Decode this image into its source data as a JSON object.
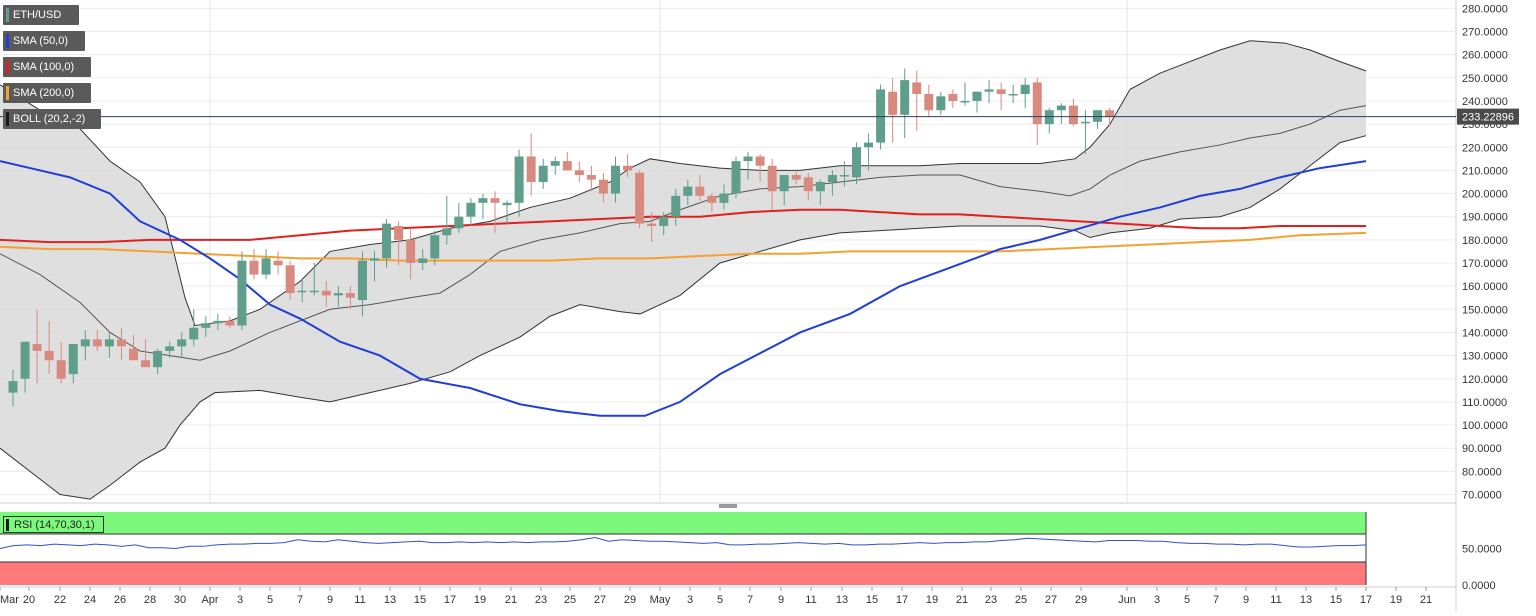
{
  "legend": {
    "symbol": "ETH/USD",
    "sma50": "SMA (50,0)",
    "sma100": "SMA (100,0)",
    "sma200": "SMA (200,0)",
    "boll": "BOLL (20,2,-2)",
    "rsi": "RSI (14,70,30,1)"
  },
  "colors": {
    "up": "#5f9e8a",
    "down": "#d98a7f",
    "sma50": "#1f3fd6",
    "sma100": "#e02020",
    "sma200": "#f5a030",
    "boll_fill": "#d9d9d9",
    "rsi_line": "#3050d0",
    "rsi_over": "#7cf87c",
    "rsi_under": "#ff7b7b",
    "price_line": "#2c3e66"
  },
  "chart_data": {
    "type": "candlestick",
    "current_price": "233.22896",
    "y_ticks": [
      "280.0000",
      "270.0000",
      "260.0000",
      "250.0000",
      "240.0000",
      "230.0000",
      "220.0000",
      "210.0000",
      "200.0000",
      "190.0000",
      "180.0000",
      "170.0000",
      "160.0000",
      "150.0000",
      "140.0000",
      "130.0000",
      "120.0000",
      "110.0000",
      "100.0000",
      "90.0000",
      "80.0000",
      "70.0000"
    ],
    "rsi_ticks": [
      "50.0000",
      "0.0000"
    ],
    "x_ticks": [
      "Mar",
      "20",
      "22",
      "24",
      "26",
      "28",
      "30",
      "Apr",
      "3",
      "5",
      "7",
      "9",
      "11",
      "13",
      "15",
      "17",
      "19",
      "21",
      "23",
      "25",
      "27",
      "29",
      "May",
      "3",
      "5",
      "7",
      "9",
      "11",
      "13",
      "15",
      "17",
      "19",
      "21",
      "23",
      "25",
      "27",
      "29",
      "Jun",
      "3",
      "5",
      "7",
      "9",
      "11",
      "13",
      "15",
      "17",
      "19",
      "21"
    ],
    "ylim": [
      68,
      283
    ],
    "candles": [
      [
        114,
        124,
        108,
        119
      ],
      [
        120,
        136,
        114,
        136
      ],
      [
        135,
        150,
        118,
        132
      ],
      [
        132,
        145,
        122,
        128
      ],
      [
        128,
        136,
        118,
        120
      ],
      [
        122,
        135,
        118,
        135
      ],
      [
        134,
        141,
        128,
        137
      ],
      [
        137,
        141,
        132,
        134
      ],
      [
        134,
        140,
        129,
        137
      ],
      [
        137,
        142,
        128,
        134
      ],
      [
        133,
        139,
        130,
        128
      ],
      [
        128,
        137,
        126,
        125
      ],
      [
        125,
        133,
        122,
        132
      ],
      [
        132,
        136,
        129,
        134
      ],
      [
        134,
        140,
        129,
        137
      ],
      [
        137,
        150,
        134,
        142
      ],
      [
        142,
        147,
        138,
        144
      ],
      [
        144,
        148,
        141,
        145
      ],
      [
        145,
        147,
        142,
        143
      ],
      [
        143,
        175,
        141,
        171
      ],
      [
        171,
        176,
        163,
        165
      ],
      [
        165,
        176,
        163,
        172
      ],
      [
        171,
        175,
        165,
        169
      ],
      [
        169,
        171,
        154,
        157
      ],
      [
        158,
        163,
        153,
        158
      ],
      [
        158,
        170,
        156,
        158
      ],
      [
        158,
        162,
        151,
        156
      ],
      [
        156,
        160,
        151,
        157
      ],
      [
        157,
        160,
        150,
        155
      ],
      [
        154,
        175,
        147,
        171
      ],
      [
        171,
        175,
        162,
        172
      ],
      [
        172,
        189,
        168,
        187
      ],
      [
        186,
        188,
        169,
        180
      ],
      [
        180,
        185,
        163,
        170
      ],
      [
        170,
        176,
        167,
        172
      ],
      [
        172,
        184,
        169,
        182
      ],
      [
        182,
        199,
        178,
        185
      ],
      [
        185,
        196,
        183,
        190
      ],
      [
        190,
        198,
        186,
        196
      ],
      [
        196,
        200,
        189,
        198
      ],
      [
        198,
        201,
        183,
        196
      ],
      [
        195,
        197,
        187,
        196
      ],
      [
        196,
        219,
        190,
        216
      ],
      [
        216,
        226,
        199,
        205
      ],
      [
        205,
        215,
        202,
        212
      ],
      [
        212,
        216,
        208,
        214
      ],
      [
        214,
        218,
        210,
        210
      ],
      [
        210,
        214,
        205,
        208
      ],
      [
        208,
        212,
        201,
        206
      ],
      [
        206,
        209,
        196,
        200
      ],
      [
        200,
        216,
        196,
        212
      ],
      [
        212,
        217,
        207,
        210
      ],
      [
        209,
        210,
        185,
        187
      ],
      [
        187,
        192,
        179,
        186
      ],
      [
        186,
        192,
        182,
        190
      ],
      [
        190,
        202,
        186,
        199
      ],
      [
        199,
        206,
        195,
        203
      ],
      [
        203,
        208,
        197,
        199
      ],
      [
        199,
        200,
        192,
        196
      ],
      [
        196,
        204,
        193,
        200
      ],
      [
        200,
        216,
        198,
        214
      ],
      [
        214,
        218,
        206,
        216
      ],
      [
        216,
        217,
        205,
        212
      ],
      [
        212,
        215,
        193,
        201
      ],
      [
        201,
        206,
        195,
        208
      ],
      [
        208,
        210,
        204,
        206
      ],
      [
        207,
        209,
        197,
        201
      ],
      [
        201,
        206,
        195,
        205
      ],
      [
        205,
        210,
        199,
        208
      ],
      [
        208,
        214,
        203,
        208
      ],
      [
        207,
        222,
        204,
        220
      ],
      [
        220,
        226,
        210,
        222
      ],
      [
        222,
        247,
        219,
        245
      ],
      [
        244,
        250,
        222,
        234
      ],
      [
        234,
        254,
        224,
        249
      ],
      [
        248,
        253,
        227,
        243
      ],
      [
        243,
        247,
        233,
        236
      ],
      [
        236,
        244,
        234,
        242
      ],
      [
        243,
        245,
        237,
        240
      ],
      [
        240,
        248,
        238,
        240
      ],
      [
        240,
        244,
        235,
        244
      ],
      [
        244,
        249,
        239,
        245
      ],
      [
        245,
        248,
        236,
        243
      ],
      [
        243,
        247,
        239,
        243
      ],
      [
        243,
        250,
        237,
        247
      ],
      [
        248,
        250,
        221,
        230
      ],
      [
        230,
        237,
        226,
        236
      ],
      [
        236,
        239,
        230,
        238
      ],
      [
        238,
        241,
        229,
        230
      ],
      [
        231,
        236,
        217,
        231
      ],
      [
        231,
        236,
        228,
        236
      ],
      [
        236,
        237,
        229,
        233
      ]
    ],
    "sma50": [
      [
        0,
        214
      ],
      [
        30,
        211
      ],
      [
        70,
        207
      ],
      [
        110,
        200
      ],
      [
        140,
        188
      ],
      [
        180,
        180
      ],
      [
        210,
        172
      ],
      [
        240,
        163
      ],
      [
        270,
        152
      ],
      [
        300,
        146
      ],
      [
        340,
        136
      ],
      [
        380,
        130
      ],
      [
        420,
        120
      ],
      [
        470,
        116
      ],
      [
        520,
        109
      ],
      [
        560,
        106
      ],
      [
        600,
        104
      ],
      [
        645,
        104
      ],
      [
        680,
        110
      ],
      [
        720,
        122
      ],
      [
        760,
        131
      ],
      [
        800,
        140
      ],
      [
        850,
        148
      ],
      [
        900,
        160
      ],
      [
        950,
        168
      ],
      [
        1000,
        176
      ],
      [
        1040,
        180
      ],
      [
        1080,
        185
      ],
      [
        1120,
        190
      ],
      [
        1160,
        194
      ],
      [
        1200,
        199
      ],
      [
        1240,
        202
      ],
      [
        1280,
        207
      ],
      [
        1320,
        211
      ],
      [
        1366,
        214
      ]
    ],
    "sma100": [
      [
        0,
        180
      ],
      [
        50,
        179
      ],
      [
        100,
        179
      ],
      [
        150,
        180
      ],
      [
        200,
        180
      ],
      [
        250,
        180
      ],
      [
        300,
        182
      ],
      [
        350,
        184
      ],
      [
        400,
        185
      ],
      [
        450,
        186
      ],
      [
        500,
        187
      ],
      [
        550,
        188
      ],
      [
        600,
        189
      ],
      [
        650,
        190
      ],
      [
        700,
        190
      ],
      [
        750,
        192
      ],
      [
        800,
        193
      ],
      [
        840,
        193
      ],
      [
        880,
        192
      ],
      [
        920,
        191
      ],
      [
        960,
        191
      ],
      [
        1000,
        190
      ],
      [
        1040,
        189
      ],
      [
        1080,
        188
      ],
      [
        1120,
        187
      ],
      [
        1160,
        186
      ],
      [
        1200,
        185
      ],
      [
        1240,
        185
      ],
      [
        1280,
        186
      ],
      [
        1320,
        186
      ],
      [
        1366,
        186
      ]
    ],
    "sma200": [
      [
        0,
        177
      ],
      [
        50,
        176
      ],
      [
        100,
        176
      ],
      [
        150,
        175
      ],
      [
        200,
        174
      ],
      [
        250,
        173
      ],
      [
        300,
        172
      ],
      [
        350,
        172
      ],
      [
        400,
        171
      ],
      [
        450,
        171
      ],
      [
        500,
        171
      ],
      [
        550,
        171
      ],
      [
        600,
        172
      ],
      [
        650,
        172
      ],
      [
        700,
        173
      ],
      [
        750,
        174
      ],
      [
        800,
        174
      ],
      [
        850,
        175
      ],
      [
        900,
        175
      ],
      [
        950,
        175
      ],
      [
        1000,
        175
      ],
      [
        1050,
        176
      ],
      [
        1100,
        177
      ],
      [
        1150,
        178
      ],
      [
        1200,
        179
      ],
      [
        1250,
        180
      ],
      [
        1300,
        182
      ],
      [
        1366,
        183
      ]
    ],
    "bb_upper": [
      [
        0,
        247
      ],
      [
        40,
        236
      ],
      [
        80,
        228
      ],
      [
        110,
        214
      ],
      [
        140,
        205
      ],
      [
        165,
        190
      ],
      [
        185,
        155
      ],
      [
        195,
        143
      ],
      [
        230,
        145
      ],
      [
        260,
        150
      ],
      [
        300,
        162
      ],
      [
        330,
        175
      ],
      [
        370,
        178
      ],
      [
        410,
        180
      ],
      [
        450,
        185
      ],
      [
        490,
        188
      ],
      [
        530,
        194
      ],
      [
        570,
        198
      ],
      [
        610,
        205
      ],
      [
        630,
        211
      ],
      [
        650,
        215
      ],
      [
        680,
        213
      ],
      [
        720,
        211
      ],
      [
        760,
        210
      ],
      [
        800,
        210
      ],
      [
        840,
        212
      ],
      [
        880,
        212
      ],
      [
        920,
        212
      ],
      [
        960,
        213
      ],
      [
        1000,
        213
      ],
      [
        1040,
        213
      ],
      [
        1075,
        215
      ],
      [
        1090,
        220
      ],
      [
        1110,
        230
      ],
      [
        1130,
        245
      ],
      [
        1160,
        252
      ],
      [
        1190,
        257
      ],
      [
        1220,
        262
      ],
      [
        1250,
        266
      ],
      [
        1285,
        265
      ],
      [
        1310,
        262
      ],
      [
        1340,
        257
      ],
      [
        1366,
        253
      ]
    ],
    "bb_lower": [
      [
        0,
        90
      ],
      [
        30,
        80
      ],
      [
        60,
        70
      ],
      [
        90,
        68
      ],
      [
        110,
        74
      ],
      [
        140,
        84
      ],
      [
        165,
        90
      ],
      [
        180,
        100
      ],
      [
        200,
        110
      ],
      [
        215,
        114
      ],
      [
        260,
        115
      ],
      [
        300,
        112
      ],
      [
        330,
        110
      ],
      [
        370,
        114
      ],
      [
        410,
        118
      ],
      [
        450,
        123
      ],
      [
        480,
        130
      ],
      [
        520,
        138
      ],
      [
        550,
        147
      ],
      [
        580,
        152
      ],
      [
        620,
        149
      ],
      [
        640,
        148
      ],
      [
        680,
        156
      ],
      [
        720,
        170
      ],
      [
        760,
        175
      ],
      [
        800,
        180
      ],
      [
        840,
        183
      ],
      [
        880,
        184
      ],
      [
        920,
        185
      ],
      [
        960,
        186
      ],
      [
        1000,
        186
      ],
      [
        1040,
        186
      ],
      [
        1075,
        184
      ],
      [
        1090,
        181
      ],
      [
        1110,
        183
      ],
      [
        1150,
        185
      ],
      [
        1180,
        189
      ],
      [
        1220,
        190
      ],
      [
        1250,
        194
      ],
      [
        1280,
        202
      ],
      [
        1310,
        212
      ],
      [
        1340,
        222
      ],
      [
        1366,
        225
      ]
    ],
    "bb_mid": [
      [
        0,
        174
      ],
      [
        40,
        165
      ],
      [
        80,
        153
      ],
      [
        110,
        140
      ],
      [
        140,
        132
      ],
      [
        170,
        130
      ],
      [
        200,
        128
      ],
      [
        230,
        132
      ],
      [
        270,
        140
      ],
      [
        300,
        145
      ],
      [
        330,
        150
      ],
      [
        370,
        152
      ],
      [
        410,
        155
      ],
      [
        440,
        157
      ],
      [
        470,
        165
      ],
      [
        500,
        175
      ],
      [
        540,
        180
      ],
      [
        580,
        183
      ],
      [
        620,
        187
      ],
      [
        650,
        188
      ],
      [
        680,
        193
      ],
      [
        720,
        199
      ],
      [
        760,
        202
      ],
      [
        800,
        203
      ],
      [
        840,
        205
      ],
      [
        880,
        207
      ],
      [
        920,
        208
      ],
      [
        960,
        208
      ],
      [
        1000,
        203
      ],
      [
        1040,
        201
      ],
      [
        1070,
        199
      ],
      [
        1090,
        202
      ],
      [
        1110,
        208
      ],
      [
        1140,
        214
      ],
      [
        1180,
        218
      ],
      [
        1220,
        221
      ],
      [
        1250,
        224
      ],
      [
        1280,
        226
      ],
      [
        1310,
        230
      ],
      [
        1340,
        236
      ],
      [
        1366,
        238
      ]
    ],
    "rsi": [
      50,
      54,
      55,
      54,
      56,
      55,
      54,
      56,
      55,
      53,
      55,
      51,
      51,
      50,
      53,
      53,
      55,
      56,
      56,
      57,
      57,
      58,
      62,
      60,
      59,
      62,
      60,
      58,
      57,
      58,
      59,
      60,
      58,
      58,
      59,
      58,
      59,
      58,
      59,
      58,
      59,
      59,
      60,
      62,
      65,
      60,
      62,
      61,
      60,
      60,
      59,
      58,
      57,
      58,
      55,
      55,
      56,
      56,
      57,
      58,
      57,
      56,
      57,
      55,
      55,
      56,
      56,
      57,
      58,
      57,
      58,
      58,
      59,
      59,
      61,
      62,
      64,
      63,
      62,
      61,
      60,
      59,
      61,
      61,
      61,
      60,
      60,
      58,
      57,
      57,
      56,
      56,
      55,
      56,
      56,
      54,
      52,
      52,
      53,
      54,
      54,
      55
    ]
  }
}
